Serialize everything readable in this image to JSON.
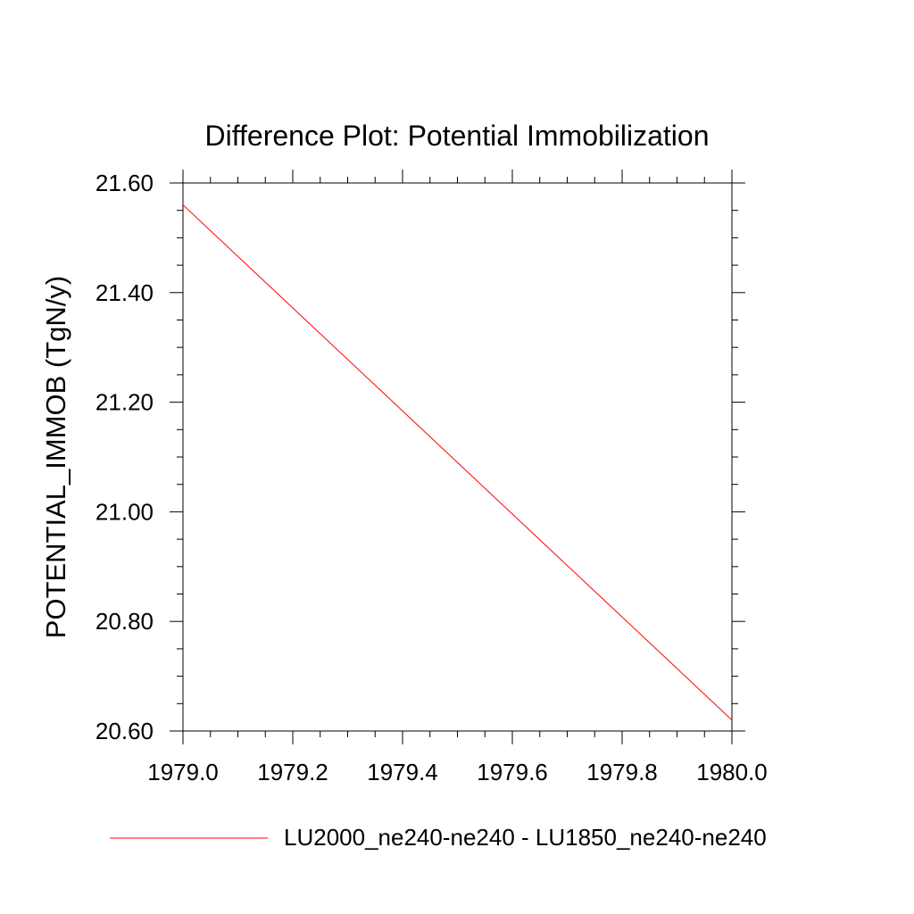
{
  "chart_data": {
    "type": "line",
    "title": "Difference Plot: Potential Immobilization",
    "xlabel": "",
    "ylabel": "POTENTIAL_IMMOB  (TgN/y)",
    "xlim": [
      1979.0,
      1980.0
    ],
    "ylim": [
      20.6,
      21.6
    ],
    "x_ticks": [
      "1979.0",
      "1979.2",
      "1979.4",
      "1979.6",
      "1979.8",
      "1980.0"
    ],
    "y_ticks": [
      "20.60",
      "20.80",
      "21.00",
      "21.20",
      "21.40",
      "21.60"
    ],
    "grid": false,
    "legend_position": "bottom",
    "series": [
      {
        "name": "LU2000_ne240-ne240 - LU1850_ne240-ne240",
        "color": "#ff0000",
        "x": [
          1979.0,
          1980.0
        ],
        "y": [
          21.56,
          20.62
        ]
      }
    ]
  }
}
